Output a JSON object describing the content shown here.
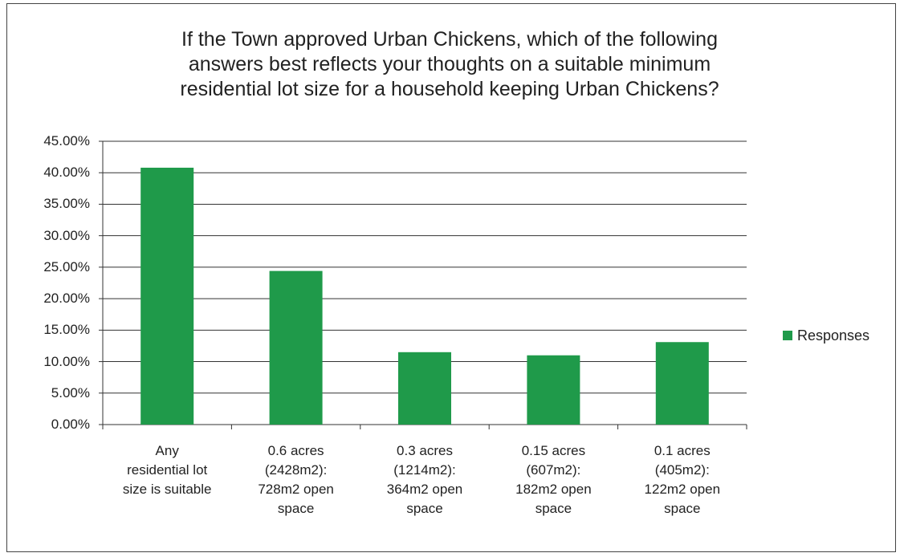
{
  "chart_data": {
    "type": "bar",
    "title": "If the Town approved Urban Chickens, which of the following\nanswers best reflects your thoughts on a suitable minimum\nresidential lot size for a household keeping Urban Chickens?",
    "categories": [
      "Any\nresidential lot\nsize is suitable",
      "0.6 acres\n(2428m2):\n728m2 open\nspace",
      "0.3 acres\n(1214m2):\n364m2 open\nspace",
      "0.15 acres\n(607m2):\n182m2 open\nspace",
      "0.1 acres\n(405m2):\n122m2 open\nspace"
    ],
    "series": [
      {
        "name": "Responses",
        "color": "#1f9a4a",
        "values": [
          40.8,
          24.4,
          11.5,
          11.0,
          13.1
        ]
      }
    ],
    "ylim": [
      0,
      45
    ],
    "yticks": [
      {
        "value": 0,
        "label": "0.00%"
      },
      {
        "value": 5,
        "label": "5.00%"
      },
      {
        "value": 10,
        "label": "10.00%"
      },
      {
        "value": 15,
        "label": "15.00%"
      },
      {
        "value": 20,
        "label": "20.00%"
      },
      {
        "value": 25,
        "label": "25.00%"
      },
      {
        "value": 30,
        "label": "30.00%"
      },
      {
        "value": 35,
        "label": "35.00%"
      },
      {
        "value": 40,
        "label": "40.00%"
      },
      {
        "value": 45,
        "label": "45.00%"
      }
    ],
    "grid": true,
    "legend": "right"
  }
}
